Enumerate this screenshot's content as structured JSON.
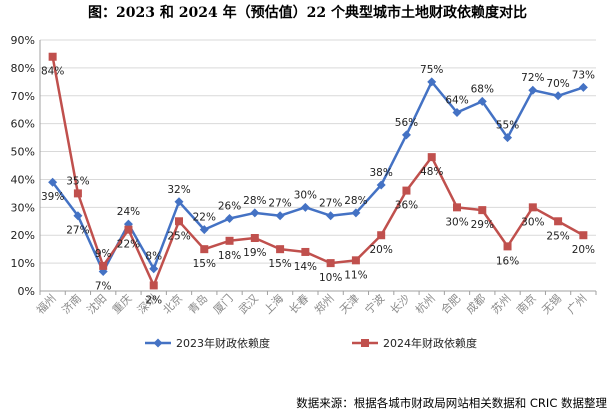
{
  "chart_data": {
    "type": "line",
    "title": "图：2023 和 2024 年（预估值）22 个典型城市土地财政依赖度对比",
    "categories": [
      "福州",
      "济南",
      "沈阳",
      "重庆",
      "深圳",
      "北京",
      "青岛",
      "厦门",
      "武汉",
      "上海",
      "长春",
      "郑州",
      "天津",
      "宁波",
      "长沙",
      "杭州",
      "合肥",
      "成都",
      "苏州",
      "南京",
      "无锡",
      "广州"
    ],
    "ylim": [
      0,
      90
    ],
    "yticks": [
      "0%",
      "10%",
      "20%",
      "30%",
      "40%",
      "50%",
      "60%",
      "70%",
      "80%",
      "90%"
    ],
    "grid": true,
    "legend_position": "bottom",
    "series": [
      {
        "name": "2023年财政依赖度",
        "color": "#4472C4",
        "marker": "diamond",
        "values": [
          39,
          27,
          7,
          24,
          8,
          32,
          22,
          26,
          28,
          27,
          30,
          27,
          28,
          38,
          56,
          75,
          64,
          68,
          55,
          72,
          70,
          73
        ],
        "labels": [
          "39%",
          "27%",
          "7%",
          "24%",
          "8%",
          "32%",
          "22%",
          "26%",
          "28%",
          "27%",
          "30%",
          "27%",
          "28%",
          "38%",
          "56%",
          "75%",
          "64%",
          "68%",
          "55%",
          "72%",
          "70%",
          "73%"
        ]
      },
      {
        "name": "2024年财政依赖度",
        "color": "#C0504D",
        "marker": "square",
        "values": [
          84,
          35,
          9,
          22,
          2,
          25,
          15,
          18,
          19,
          15,
          14,
          10,
          11,
          20,
          36,
          48,
          30,
          29,
          16,
          30,
          25,
          20
        ],
        "labels": [
          "84%",
          "35%",
          "9%",
          "22%",
          "2%",
          "25%",
          "15%",
          "18%",
          "19%",
          "15%",
          "14%",
          "10%",
          "11%",
          "20%",
          "36%",
          "48%",
          "30%",
          "29%",
          "16%",
          "30%",
          "25%",
          "20%"
        ]
      }
    ]
  },
  "source": "数据来源：根据各城市财政局网站相关数据和 CRIC 数据整理"
}
